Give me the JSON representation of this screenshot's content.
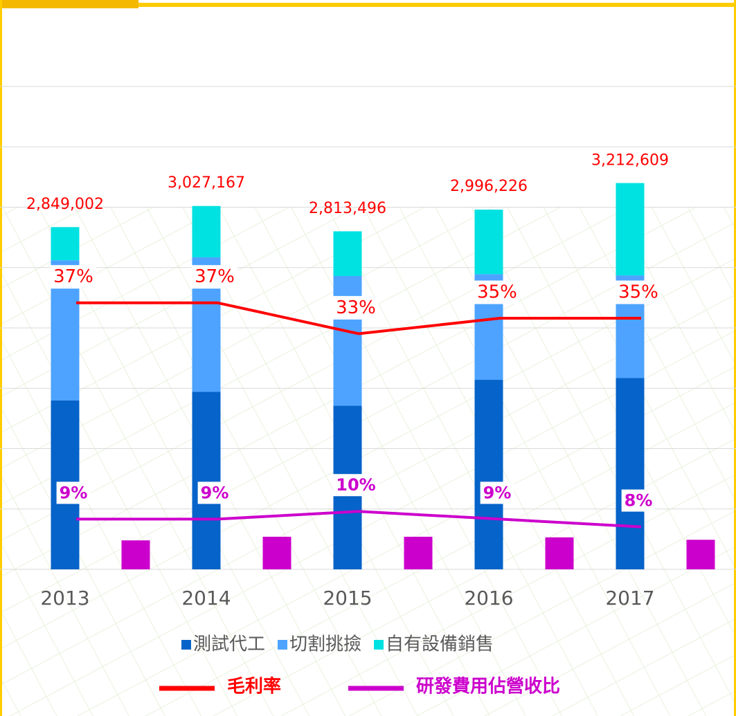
{
  "chart_data": {
    "type": "bar",
    "categories": [
      "2013",
      "2014",
      "2015",
      "2016",
      "2017"
    ],
    "ylim": [
      0,
      4000000
    ],
    "yticks": [
      0,
      500000,
      1000000,
      1500000,
      2000000,
      2500000,
      3000000,
      3500000,
      4000000
    ],
    "y2lim": [
      2.5,
      65
    ],
    "grid": true,
    "totals": [
      2849002,
      3027167,
      2813496,
      2996226,
      3212609
    ],
    "total_labels": [
      "2,849,002",
      "3,027,167",
      "2,813,496",
      "2,996,226",
      "3,212,609"
    ],
    "series": [
      {
        "name": "測試代工",
        "type": "bar",
        "stack": true,
        "color": "#0563c9",
        "values": [
          1400000,
          1470000,
          1355000,
          1570000,
          1585000
        ]
      },
      {
        "name": "切割挑撿",
        "type": "bar",
        "stack": true,
        "color": "#4da3ff",
        "values": [
          1160000,
          1115000,
          1075000,
          875000,
          850000
        ]
      },
      {
        "name": "自有設備銷售",
        "type": "bar",
        "stack": true,
        "color": "#00e1e1",
        "values": [
          275000,
          425000,
          370000,
          535000,
          765000
        ]
      },
      {
        "type": "bar",
        "color": "#cc00cc",
        "values": [
          240000,
          270000,
          270000,
          265000,
          245000
        ]
      },
      {
        "name": "毛利率",
        "type": "line",
        "axis": "y2",
        "color": "#ff0000",
        "values": [
          37,
          37,
          33,
          35,
          35
        ],
        "value_labels": [
          "37%",
          "37%",
          "33%",
          "35%",
          "35%"
        ]
      },
      {
        "name": "研發費用佔營收比",
        "type": "line",
        "axis": "y2",
        "color": "#cc00cc",
        "values": [
          9,
          9,
          10,
          9,
          8
        ],
        "value_labels": [
          "9%",
          "9%",
          "10%",
          "9%",
          "8%"
        ]
      }
    ]
  }
}
